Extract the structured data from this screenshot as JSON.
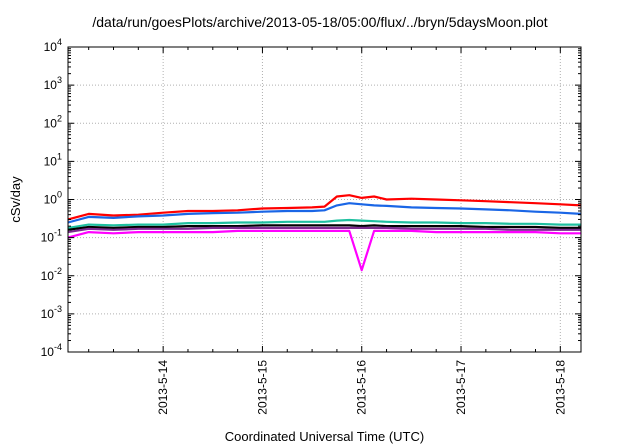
{
  "chart_data": {
    "type": "line",
    "title": "/data/run/goesPlots/archive/2013-05-18/05:00/flux/../bryn/5daysMoon.plot",
    "xlabel": "Coordinated Universal Time (UTC)",
    "ylabel": "cSv/day",
    "y_scale": "log",
    "ylim": [
      0.0001,
      10000
    ],
    "y_tick_labels": [
      {
        "base": "10",
        "exp": "-4"
      },
      {
        "base": "10",
        "exp": "-3"
      },
      {
        "base": "10",
        "exp": "-2"
      },
      {
        "base": "10",
        "exp": "-1"
      },
      {
        "base": "10",
        "exp": "0"
      },
      {
        "base": "10",
        "exp": "1"
      },
      {
        "base": "10",
        "exp": "2"
      },
      {
        "base": "10",
        "exp": "3"
      },
      {
        "base": "10",
        "exp": "4"
      }
    ],
    "x_tick_labels": [
      "2013-5-14",
      "2013-5-15",
      "2013-5-16",
      "2013-5-17",
      "2013-5-18"
    ],
    "xlim": [
      "2013-05-13 01:00",
      "2013-05-18 05:00"
    ],
    "grid": true,
    "legend": "none",
    "x": [
      "2013-05-13 01:00",
      "2013-05-13 06:00",
      "2013-05-13 12:00",
      "2013-05-13 18:00",
      "2013-05-14 00:00",
      "2013-05-14 06:00",
      "2013-05-14 12:00",
      "2013-05-14 18:00",
      "2013-05-15 00:00",
      "2013-05-15 06:00",
      "2013-05-15 12:00",
      "2013-05-15 15:00",
      "2013-05-15 18:00",
      "2013-05-15 21:00",
      "2013-05-16 00:00",
      "2013-05-16 03:00",
      "2013-05-16 06:00",
      "2013-05-16 12:00",
      "2013-05-16 18:00",
      "2013-05-17 00:00",
      "2013-05-17 06:00",
      "2013-05-17 12:00",
      "2013-05-17 18:00",
      "2013-05-18 00:00",
      "2013-05-18 05:00"
    ],
    "series": [
      {
        "color": "#ff0000",
        "values": [
          0.3,
          0.42,
          0.38,
          0.4,
          0.45,
          0.5,
          0.5,
          0.52,
          0.58,
          0.6,
          0.62,
          0.65,
          1.2,
          1.3,
          1.1,
          1.2,
          1.0,
          1.05,
          1.0,
          0.95,
          0.9,
          0.85,
          0.8,
          0.75,
          0.7
        ]
      },
      {
        "color": "#1a66e6",
        "values": [
          0.25,
          0.35,
          0.33,
          0.36,
          0.38,
          0.42,
          0.44,
          0.45,
          0.48,
          0.5,
          0.5,
          0.52,
          0.7,
          0.8,
          0.75,
          0.7,
          0.68,
          0.62,
          0.6,
          0.58,
          0.55,
          0.52,
          0.48,
          0.45,
          0.42
        ]
      },
      {
        "color": "#20c0a0",
        "values": [
          0.18,
          0.22,
          0.21,
          0.22,
          0.22,
          0.24,
          0.24,
          0.25,
          0.25,
          0.26,
          0.26,
          0.26,
          0.28,
          0.29,
          0.28,
          0.27,
          0.26,
          0.25,
          0.25,
          0.24,
          0.24,
          0.23,
          0.23,
          0.22,
          0.22
        ]
      },
      {
        "color": "#000000",
        "values": [
          0.16,
          0.19,
          0.18,
          0.19,
          0.19,
          0.2,
          0.2,
          0.2,
          0.21,
          0.21,
          0.21,
          0.21,
          0.21,
          0.21,
          0.2,
          0.21,
          0.2,
          0.2,
          0.2,
          0.2,
          0.19,
          0.19,
          0.19,
          0.18,
          0.18
        ]
      },
      {
        "color": "#7b2a8e",
        "values": [
          0.14,
          0.17,
          0.16,
          0.17,
          0.17,
          0.17,
          0.18,
          0.18,
          0.18,
          0.18,
          0.18,
          0.18,
          0.18,
          0.18,
          0.18,
          0.18,
          0.18,
          0.17,
          0.17,
          0.17,
          0.17,
          0.16,
          0.16,
          0.16,
          0.16
        ]
      },
      {
        "color": "#ff00ff",
        "values": [
          0.1,
          0.14,
          0.13,
          0.14,
          0.14,
          0.14,
          0.14,
          0.15,
          0.15,
          0.15,
          0.15,
          0.15,
          0.15,
          0.15,
          0.014,
          0.15,
          0.15,
          0.15,
          0.14,
          0.14,
          0.14,
          0.14,
          0.14,
          0.13,
          0.13
        ]
      }
    ]
  }
}
